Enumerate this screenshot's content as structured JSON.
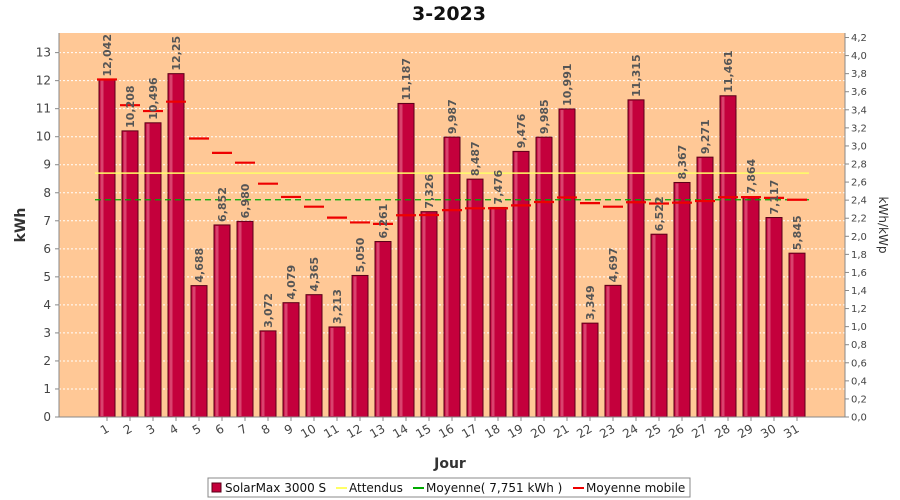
{
  "chart_data": {
    "type": "bar",
    "title": "3-2023",
    "xlabel": "Jour",
    "ylabel": "kWh",
    "y2label": "kWh/kWp",
    "ylim": [
      0,
      13.7
    ],
    "y2lim": [
      0,
      4.25
    ],
    "yticks": [
      "0",
      "1",
      "2",
      "3",
      "4",
      "5",
      "6",
      "7",
      "8",
      "9",
      "10",
      "11",
      "12",
      "13"
    ],
    "y2ticks": [
      "0,0",
      "0,2",
      "0,4",
      "0,6",
      "0,8",
      "1,0",
      "1,2",
      "1,4",
      "1,6",
      "1,8",
      "2,0",
      "2,2",
      "2,4",
      "2,6",
      "2,8",
      "3,0",
      "3,2",
      "3,4",
      "3,6",
      "3,8",
      "4,0",
      "4,2"
    ],
    "categories": [
      "1",
      "2",
      "3",
      "4",
      "5",
      "6",
      "7",
      "8",
      "9",
      "10",
      "11",
      "12",
      "13",
      "14",
      "15",
      "16",
      "17",
      "18",
      "19",
      "20",
      "21",
      "22",
      "23",
      "24",
      "25",
      "26",
      "27",
      "28",
      "29",
      "30",
      "31"
    ],
    "series": [
      {
        "name": "SolarMax 3000 S",
        "type": "bar",
        "color": "#c4003c",
        "values": [
          12.042,
          10.208,
          10.496,
          12.25,
          4.688,
          6.852,
          6.98,
          3.072,
          4.079,
          4.365,
          3.213,
          5.05,
          6.261,
          11.187,
          7.326,
          9.987,
          8.487,
          7.476,
          9.476,
          9.985,
          10.991,
          3.349,
          4.697,
          11.315,
          6.522,
          8.367,
          9.271,
          11.461,
          7.864,
          7.117,
          5.845
        ],
        "labels": [
          "12,042",
          "10,208",
          "10,496",
          "12,25",
          "4,688",
          "6,852",
          "6,980",
          "3,072",
          "4,079",
          "4,365",
          "3,213",
          "5,050",
          "6,261",
          "11,187",
          "7,326",
          "9,987",
          "8,487",
          "7,476",
          "9,476",
          "9,985",
          "10,991",
          "3,349",
          "4,697",
          "11,315",
          "6,522",
          "8,367",
          "9,271",
          "11,461",
          "7,864",
          "7,117",
          "5,845"
        ]
      },
      {
        "name": "Attendus",
        "type": "line",
        "color": "#ffff66",
        "value": 8.7
      },
      {
        "name": "Moyenne( 7,751 kWh )",
        "type": "line",
        "color": "#00aa00",
        "value": 7.751
      },
      {
        "name": "Moyenne mobile",
        "type": "step",
        "color": "#ee0000",
        "values": [
          12.042,
          11.125,
          10.915,
          11.249,
          9.937,
          9.423,
          9.074,
          8.324,
          7.852,
          7.504,
          7.114,
          6.942,
          6.89,
          7.197,
          7.206,
          7.38,
          7.445,
          7.447,
          7.549,
          7.67,
          7.834,
          7.63,
          7.503,
          7.662,
          7.617,
          7.646,
          7.706,
          7.843,
          7.844,
          7.819,
          7.751
        ]
      }
    ],
    "legend_position": "bottom",
    "grid": true,
    "colors": {
      "plot_background": "#ffc896",
      "grid": "#ffffff",
      "bar_edge": "#5a0018"
    }
  }
}
